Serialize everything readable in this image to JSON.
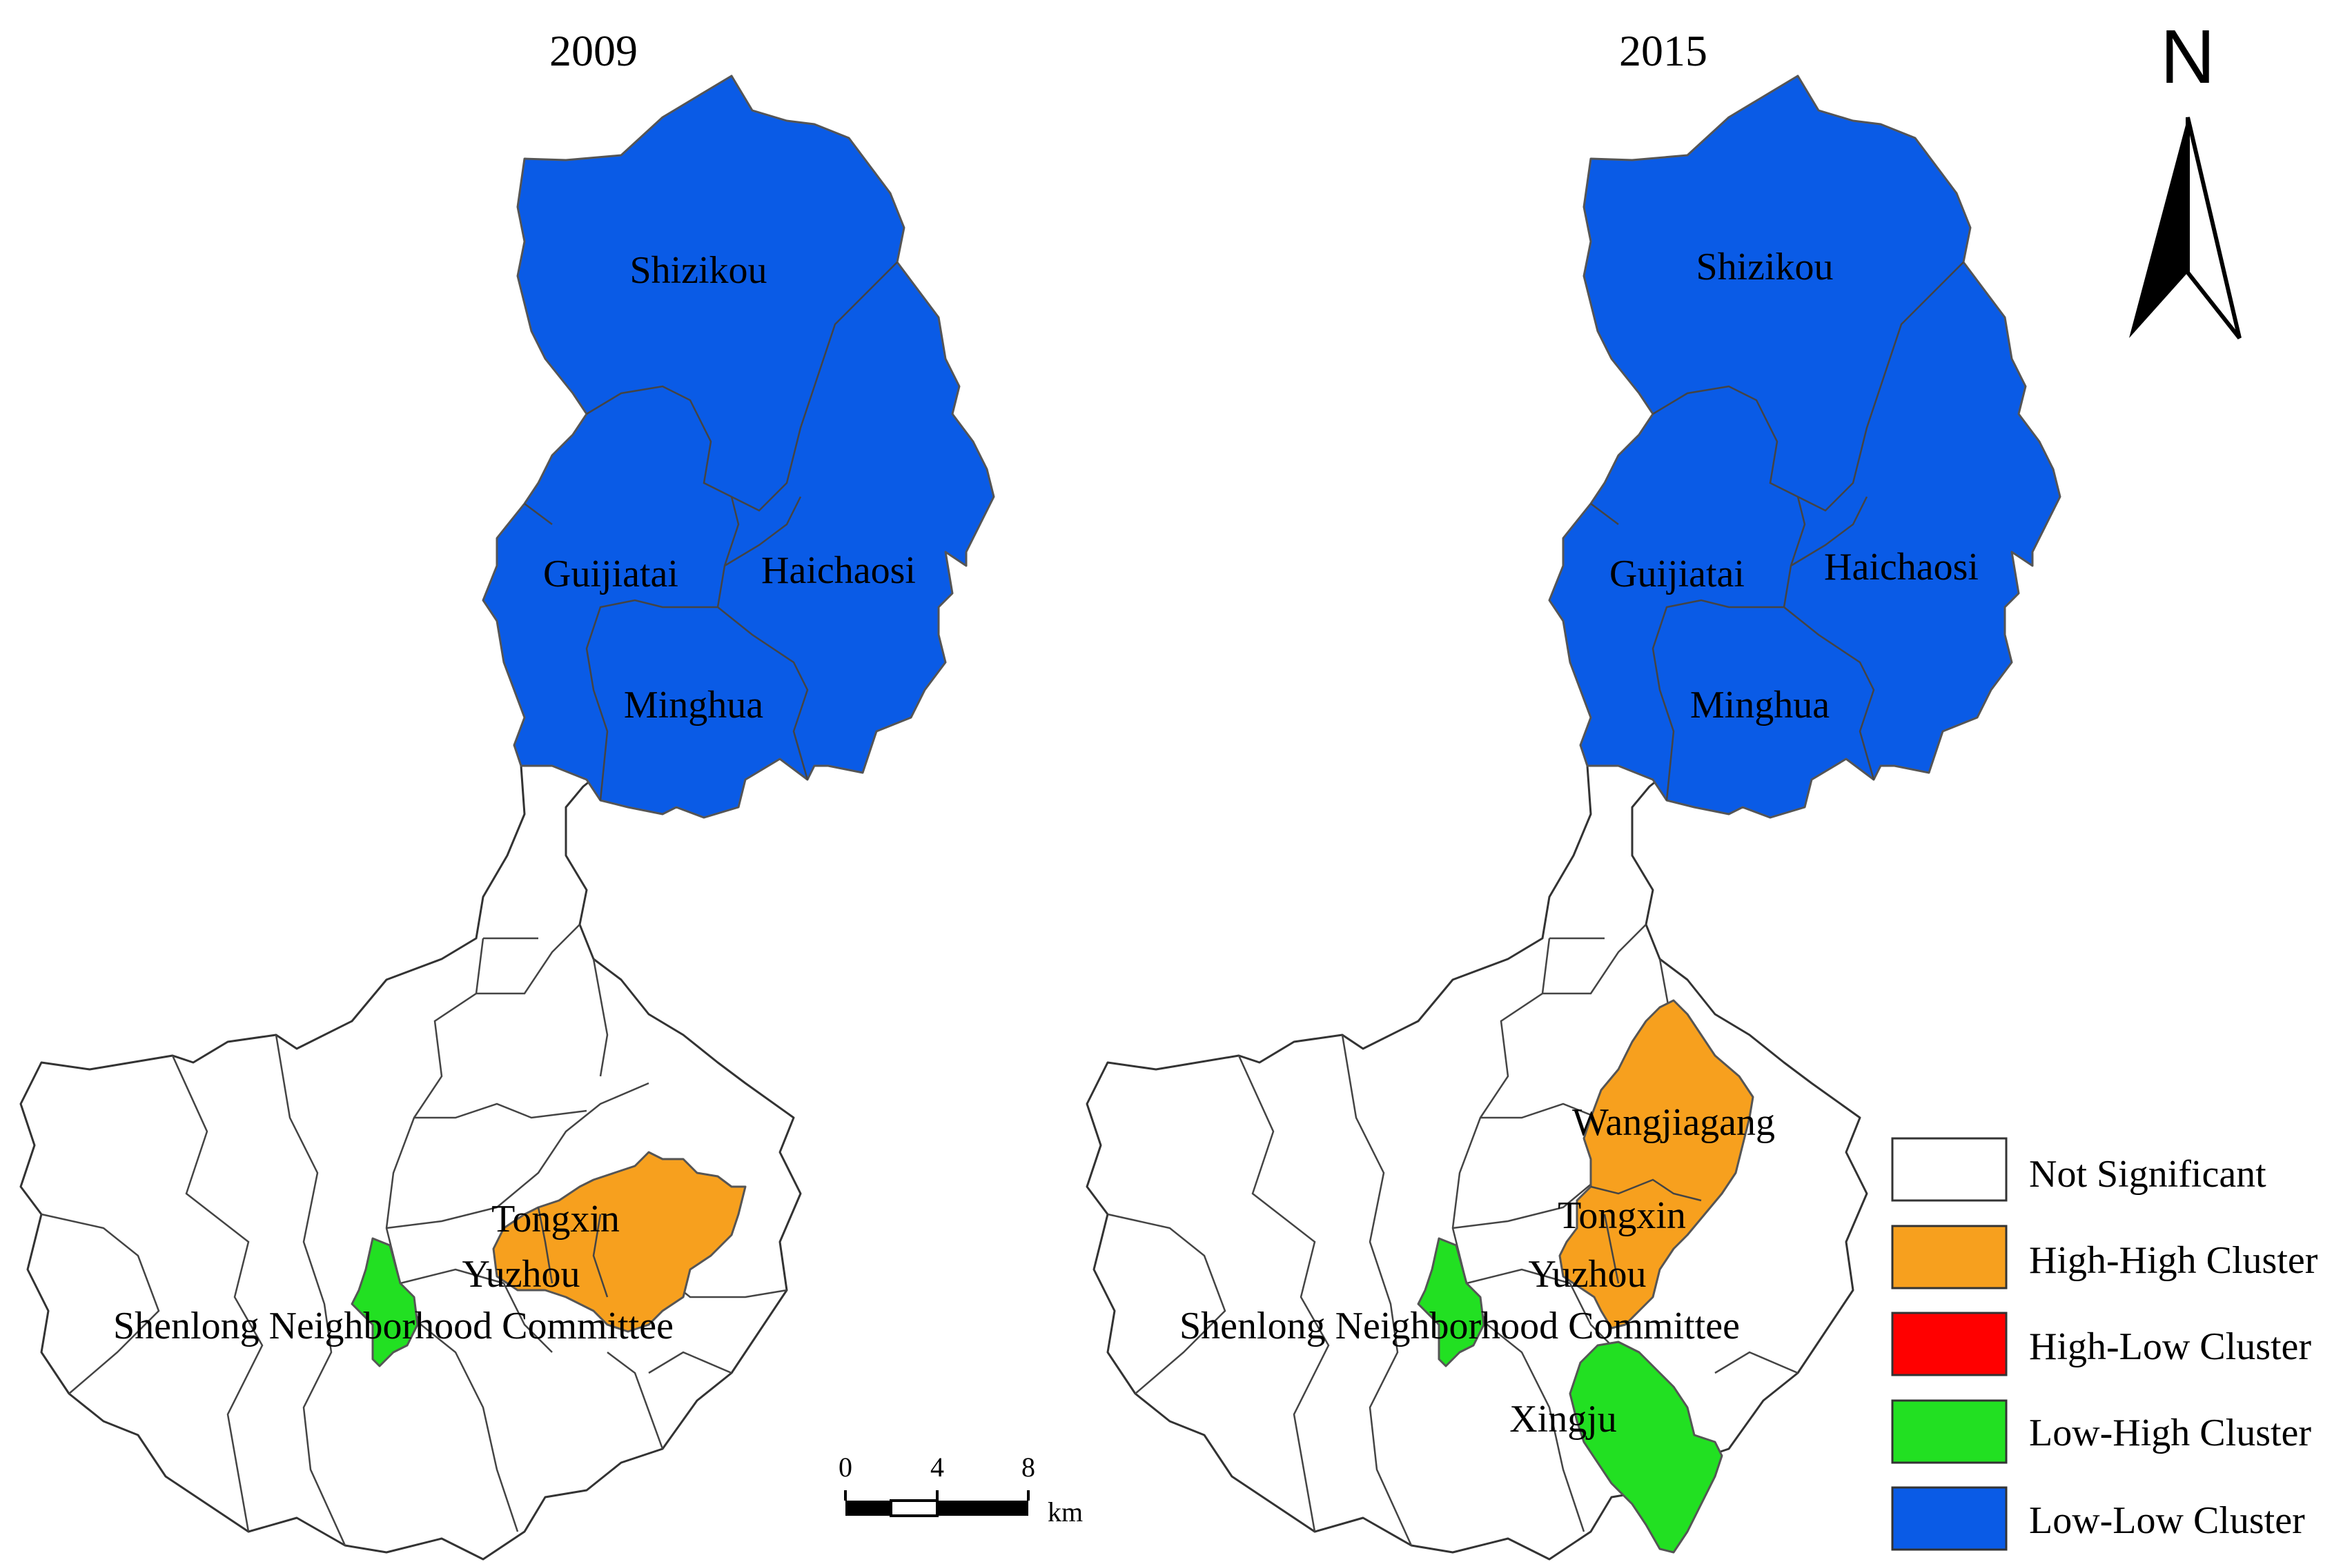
{
  "maps": [
    {
      "year": "2009",
      "labels": {
        "shizikou": "Shizikou",
        "guijiatai": "Guijiatai",
        "haichaosi": "Haichaosi",
        "minghua": "Minghua",
        "tongxin": "Tongxin",
        "yuzhou": "Yuzhou",
        "shenlong": "Shenlong Neighborhood Committee"
      }
    },
    {
      "year": "2015",
      "labels": {
        "shizikou": "Shizikou",
        "guijiatai": "Guijiatai",
        "haichaosi": "Haichaosi",
        "minghua": "Minghua",
        "wangjiagang": "Wangjiagang",
        "tongxin": "Tongxin",
        "yuzhou": "Yuzhou",
        "shenlong": "Shenlong Neighborhood Committee",
        "xingju": "Xingju"
      }
    }
  ],
  "north_arrow": {
    "label": "N"
  },
  "scale_bar": {
    "ticks": [
      "0",
      "4",
      "8"
    ],
    "unit": "km"
  },
  "legend": [
    {
      "label": "Not Significant",
      "color": "#ffffff"
    },
    {
      "label": "High-High Cluster",
      "color": "#f7a01e"
    },
    {
      "label": "High-Low Cluster",
      "color": "#ff0000"
    },
    {
      "label": "Low-High Cluster",
      "color": "#22e022"
    },
    {
      "label": "Low-Low Cluster",
      "color": "#0a5be6"
    }
  ],
  "colors": {
    "low_low": "#0a5be6",
    "high_high": "#f7a01e",
    "low_high": "#22e022",
    "not_significant": "#ffffff"
  }
}
